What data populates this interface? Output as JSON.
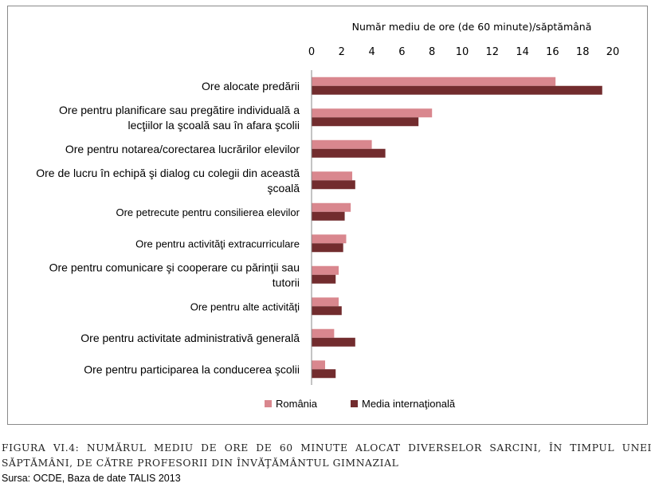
{
  "chart_data": {
    "type": "bar",
    "orientation": "horizontal",
    "x_axis_title": "Număr mediu de ore (de 60 minute)/săptămână",
    "xlim": [
      0,
      20
    ],
    "x_ticks": [
      "0",
      "2",
      "4",
      "6",
      "8",
      "10",
      "12",
      "14",
      "16",
      "18",
      "20"
    ],
    "grid": false,
    "legend_position": "bottom",
    "colors": {
      "Romania": "#d9878e",
      "Media": "#722c2e"
    },
    "categories": [
      [
        "Ore alocate predării"
      ],
      [
        "Ore pentru planificare sau pregătire individuală a",
        "lecţiilor la şcoală sau în afara şcolii"
      ],
      [
        "Ore pentru notarea/corectarea lucrărilor elevilor"
      ],
      [
        "Ore de lucru în echipă şi dialog cu colegii din această",
        "şcoală"
      ],
      [
        "Ore petrecute pentru consilierea elevilor"
      ],
      [
        "Ore pentru activităţi extracurriculare"
      ],
      [
        "Ore pentru comunicare şi cooperare cu părinţii sau",
        "tutorii"
      ],
      [
        "Ore pentru alte activităţi"
      ],
      [
        "Ore pentru activitate administrativă generală"
      ],
      [
        "Ore pentru participarea la conducerea şcolii"
      ]
    ],
    "series": [
      {
        "name": "România",
        "values": [
          16.2,
          8.0,
          4.0,
          2.7,
          2.6,
          2.3,
          1.8,
          1.8,
          1.5,
          0.9
        ]
      },
      {
        "name": "Media internaţională",
        "values": [
          19.3,
          7.1,
          4.9,
          2.9,
          2.2,
          2.1,
          1.6,
          2.0,
          2.9,
          1.6
        ]
      }
    ]
  },
  "caption": "FIGURA VI.4: NUMĂRUL MEDIU DE ORE DE 60 MINUTE ALOCAT DIVERSELOR SARCINI, ÎN TIMPUL UNEI SĂPTĂMÂNI, DE CĂTRE PROFESORII DIN ÎNVĂŢĂMÂNTUL GIMNAZIAL",
  "source": "Sursa: OCDE, Baza de date TALIS 2013"
}
